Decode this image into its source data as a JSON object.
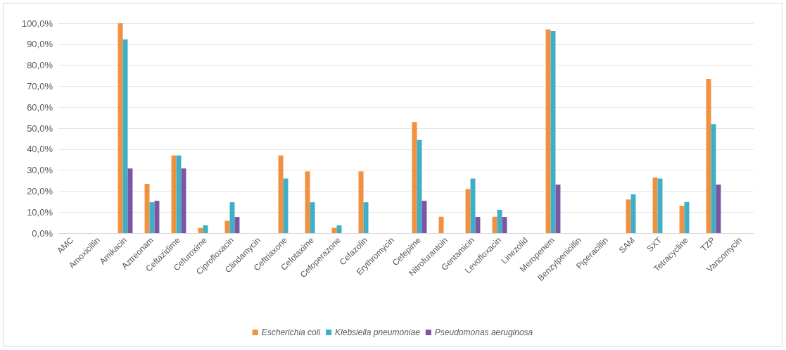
{
  "chart_data": {
    "type": "bar",
    "categories": [
      "AMC",
      "Amoxicillin",
      "Amikacin",
      "Aztreonam",
      "Ceftazidime",
      "Cefuroxime",
      "Ciprofloxacin",
      "Clindamycin",
      "Ceftriaxone",
      "Cefotaxime",
      "Cefoperazone",
      "Cefazolin",
      "Erythromycin",
      "Cefepime",
      "Nitrofurantoin",
      "Gentamicin",
      "Levofloxacin",
      "Linezolid",
      "Meropenem",
      "Benzylpenicillin",
      "Piperacillin",
      "SAM",
      "SXT",
      "Tetracycline",
      "TZP",
      "Vancomycin"
    ],
    "series": [
      {
        "name": "Escherichia coli",
        "color": "#f0913f",
        "values": [
          null,
          null,
          100,
          23.5,
          37,
          2.5,
          5.9,
          null,
          37,
          29.4,
          2.5,
          29.4,
          null,
          52.9,
          7.8,
          21,
          7.8,
          null,
          97.1,
          null,
          null,
          16,
          26.5,
          13,
          73.5,
          null
        ]
      },
      {
        "name": "Klebsiella pneumoniae",
        "color": "#3fafc8",
        "values": [
          null,
          null,
          92.3,
          14.7,
          37,
          3.7,
          14.7,
          null,
          26,
          14.7,
          3.7,
          14.7,
          null,
          44.4,
          null,
          26,
          11.1,
          null,
          96.3,
          null,
          null,
          18.5,
          26,
          14.8,
          51.9,
          null
        ]
      },
      {
        "name": "Pseudomonas aeruginosa",
        "color": "#7a56a3",
        "values": [
          null,
          null,
          30.8,
          15.4,
          30.8,
          null,
          7.7,
          null,
          null,
          null,
          null,
          null,
          null,
          15.4,
          null,
          7.7,
          7.7,
          null,
          23.1,
          null,
          null,
          null,
          null,
          null,
          23.1,
          null
        ]
      }
    ],
    "ylim": [
      0,
      100
    ],
    "yticks": [
      {
        "value": 0,
        "label": "0,0%"
      },
      {
        "value": 10,
        "label": "10,0%"
      },
      {
        "value": 20,
        "label": "20,0%"
      },
      {
        "value": 30,
        "label": "30,0%"
      },
      {
        "value": 40,
        "label": "40,0%"
      },
      {
        "value": 50,
        "label": "50,0%"
      },
      {
        "value": 60,
        "label": "60,0%"
      },
      {
        "value": 70,
        "label": "70,0%"
      },
      {
        "value": 80,
        "label": "80,0%"
      },
      {
        "value": 90,
        "label": "90,0%"
      },
      {
        "value": 100,
        "label": "100,0%"
      }
    ],
    "grid": "y",
    "legend": "bottom"
  }
}
